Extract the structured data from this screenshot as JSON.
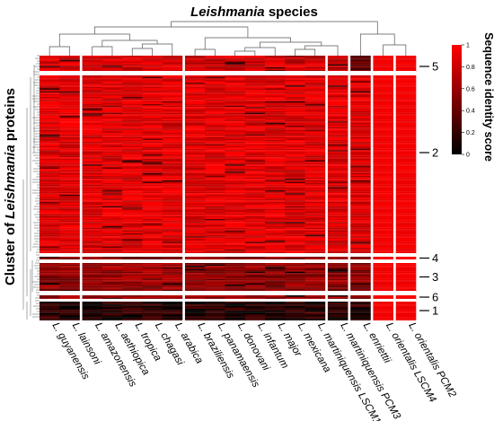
{
  "title_prefix": "Leishmania",
  "title_suffix": " species",
  "ylabel_prefix": "Cluster of ",
  "ylabel_italic": "Leishmania",
  "ylabel_suffix": " proteins",
  "legend": {
    "title": "Sequence identity score",
    "ticks": [
      "0",
      "0.2",
      "0.4",
      "0.6",
      "0.8",
      "1"
    ],
    "tick_values": [
      0,
      0.2,
      0.4,
      0.6,
      0.8,
      1
    ],
    "colors": [
      "#000000",
      "#ff0000"
    ]
  },
  "chart_data": {
    "type": "heatmap",
    "title": "Leishmania species",
    "xlabel": "",
    "ylabel": "Cluster of Leishmania proteins",
    "value_range": [
      0,
      1
    ],
    "columns": [
      "L. guyanensis",
      "L. lainsoni",
      "L. amazonensis",
      "L. aethiopica",
      "L. tropica",
      "L. chagasi",
      "L. arabica",
      "L. braziliensis",
      "L. panamaensis",
      "L. donovani",
      "L. infantum",
      "L. major",
      "L. mexicana",
      "L. martiniquensis LSCM1",
      "L. martiniquensis PCM3",
      "L. enriettii",
      "L. orientalis LSCM4",
      "L. orientalis PCM2"
    ],
    "column_groups": [
      2,
      5,
      7,
      1,
      1,
      1,
      1
    ],
    "row_clusters": [
      {
        "label": "5",
        "order": 1
      },
      {
        "label": "2",
        "order": 2
      },
      {
        "label": "4",
        "order": 3
      },
      {
        "label": "3",
        "order": 4
      },
      {
        "label": "6",
        "order": 5
      },
      {
        "label": "1",
        "order": 6
      }
    ],
    "cluster_mean_identity": {
      "5": [
        0.85,
        0.85,
        0.83,
        0.83,
        0.83,
        0.83,
        0.83,
        0.8,
        0.8,
        0.8,
        0.8,
        0.8,
        0.8,
        0.8,
        0.75,
        0.35,
        0.95,
        0.95
      ],
      "2": [
        0.88,
        0.88,
        0.88,
        0.88,
        0.88,
        0.88,
        0.88,
        0.88,
        0.88,
        0.88,
        0.88,
        0.88,
        0.88,
        0.88,
        0.88,
        0.85,
        0.95,
        0.95
      ],
      "4": [
        0.4,
        0.45,
        0.5,
        0.5,
        0.5,
        0.5,
        0.5,
        0.5,
        0.5,
        0.5,
        0.5,
        0.5,
        0.5,
        0.5,
        0.5,
        0.5,
        0.95,
        0.95
      ],
      "3": [
        0.55,
        0.55,
        0.6,
        0.6,
        0.6,
        0.6,
        0.6,
        0.55,
        0.55,
        0.55,
        0.55,
        0.55,
        0.55,
        0.55,
        0.55,
        0.5,
        0.95,
        0.95
      ],
      "6": [
        0.6,
        0.6,
        0.6,
        0.6,
        0.6,
        0.6,
        0.6,
        0.6,
        0.6,
        0.6,
        0.6,
        0.6,
        0.6,
        0.6,
        0.6,
        0.4,
        0.95,
        0.95
      ],
      "1": [
        0.15,
        0.15,
        0.15,
        0.15,
        0.15,
        0.15,
        0.15,
        0.15,
        0.15,
        0.15,
        0.15,
        0.15,
        0.15,
        0.15,
        0.15,
        0.15,
        0.95,
        0.95
      ]
    }
  }
}
